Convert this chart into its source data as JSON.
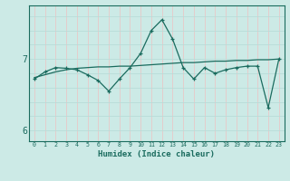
{
  "xlabel": "Humidex (Indice chaleur)",
  "ylabel": "",
  "bg_color": "#cceae6",
  "line_color": "#1a6b5e",
  "grid_color_v": "#b8dcd8",
  "grid_color_h": "#e8c8c8",
  "x": [
    0,
    1,
    2,
    3,
    4,
    5,
    6,
    7,
    8,
    9,
    10,
    11,
    12,
    13,
    14,
    15,
    16,
    17,
    18,
    19,
    20,
    21,
    22,
    23
  ],
  "y_data": [
    6.72,
    6.82,
    6.88,
    6.87,
    6.85,
    6.78,
    6.7,
    6.55,
    6.72,
    6.88,
    7.08,
    7.4,
    7.55,
    7.28,
    6.88,
    6.72,
    6.88,
    6.8,
    6.85,
    6.88,
    6.9,
    6.9,
    6.32,
    7.0
  ],
  "y_trend": [
    6.74,
    6.78,
    6.82,
    6.85,
    6.87,
    6.88,
    6.89,
    6.89,
    6.9,
    6.9,
    6.91,
    6.92,
    6.93,
    6.94,
    6.95,
    6.95,
    6.96,
    6.97,
    6.97,
    6.98,
    6.98,
    6.99,
    6.99,
    7.0
  ],
  "yticks": [
    6,
    7
  ],
  "ylim": [
    5.85,
    7.75
  ],
  "xlim": [
    -0.5,
    23.5
  ]
}
